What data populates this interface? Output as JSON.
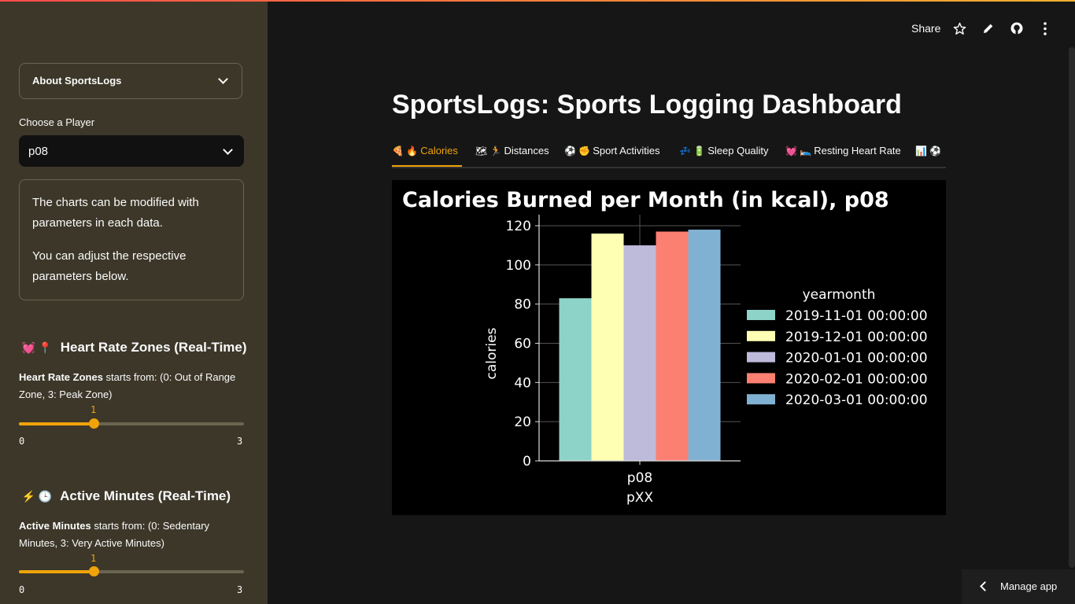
{
  "header": {
    "share_label": "Share",
    "icons": [
      "star-icon",
      "pencil-icon",
      "github-icon",
      "more-vertical-icon"
    ]
  },
  "sidebar": {
    "expander_label": "About SportsLogs",
    "player_select": {
      "label": "Choose a Player",
      "value": "p08"
    },
    "info": {
      "p1": "The charts can be modified with parameters in each data.",
      "p2": "You can adjust the respective parameters below."
    },
    "heart_rate": {
      "emoji": "💓 📍",
      "title": "Heart Rate Zones (Real-Time)",
      "desc_bold": "Heart Rate Zones",
      "desc_rest": " starts from: (0: Out of Range Zone, 3: Peak Zone)",
      "slider": {
        "value": "1",
        "min": "0",
        "max": "3",
        "fraction": 0.333
      }
    },
    "active_minutes": {
      "emoji": "⚡ 🕒",
      "title": "Active Minutes (Real-Time)",
      "desc_bold": "Active Minutes",
      "desc_rest": " starts from: (0: Sedentary Minutes, 3: Very Active Minutes)",
      "slider": {
        "value": "1",
        "min": "0",
        "max": "3",
        "fraction": 0.333
      }
    }
  },
  "main": {
    "title": "SportsLogs: Sports Logging Dashboard",
    "tabs": [
      {
        "emoji": "🍕 🔥",
        "label": "Calories"
      },
      {
        "emoji": "🗺 🏃",
        "label": "Distances"
      },
      {
        "emoji": "⚽ ✊",
        "label": "Sport Activities"
      },
      {
        "emoji": "💤 🔋",
        "label": "Sleep Quality"
      },
      {
        "emoji": "💓 🛌",
        "label": "Resting Heart Rate"
      },
      {
        "emoji": "📊 ⚽",
        "label": ""
      }
    ]
  },
  "manage_label": "Manage app",
  "chart_data": {
    "type": "bar",
    "title": "Calories Burned per Month (in kcal), p08",
    "xlabel": "pXX",
    "ylabel": "calories",
    "categories": [
      "p08"
    ],
    "ylim": [
      0,
      120
    ],
    "yticks": [
      "0",
      "20",
      "40",
      "60",
      "80",
      "100",
      "120"
    ],
    "grid": true,
    "legend_title": "yearmonth",
    "legend_position": "right",
    "series": [
      {
        "name": "2019-11-01 00:00:00",
        "values": [
          83
        ],
        "color": "#8dd3c7"
      },
      {
        "name": "2019-12-01 00:00:00",
        "values": [
          116
        ],
        "color": "#ffffb3"
      },
      {
        "name": "2020-01-01 00:00:00",
        "values": [
          110
        ],
        "color": "#bebada"
      },
      {
        "name": "2020-02-01 00:00:00",
        "values": [
          117
        ],
        "color": "#fb8072"
      },
      {
        "name": "2020-03-01 00:00:00",
        "values": [
          118
        ],
        "color": "#80b1d3"
      }
    ]
  },
  "colors": {
    "accent": "#f0a30a",
    "sidebar_bg": "#3c3729",
    "main_bg": "#161616"
  }
}
